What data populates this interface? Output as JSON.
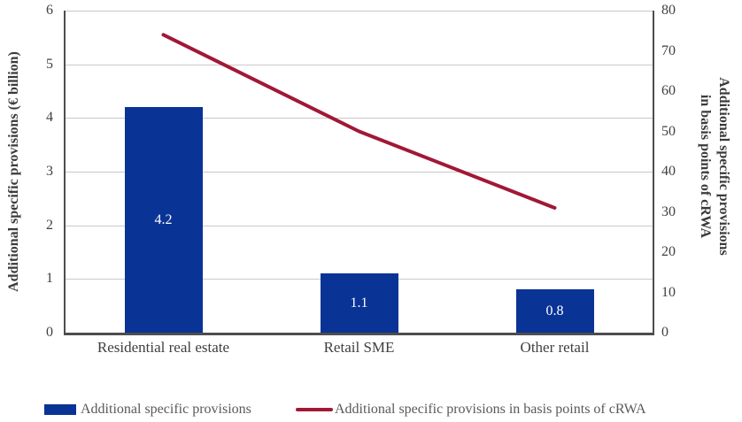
{
  "chart_data": {
    "type": "bar+line dual-axis",
    "categories": [
      "Residential real estate",
      "Retail SME",
      "Other retail"
    ],
    "series": [
      {
        "name": "Additional specific provisions",
        "type": "bar",
        "axis": "left",
        "values": [
          4.2,
          1.1,
          0.8
        ],
        "value_labels": [
          "4.2",
          "1.1",
          "0.8"
        ],
        "color": "#0a3396"
      },
      {
        "name": "Additional specific provisions in basis points of cRWA",
        "type": "line",
        "axis": "right",
        "values": [
          74,
          50,
          31
        ],
        "color": "#a11836"
      }
    ],
    "left_axis": {
      "title": "Additional specific provisions (€ billion)",
      "min": 0,
      "max": 6,
      "ticks": [
        0,
        1,
        2,
        3,
        4,
        5,
        6
      ]
    },
    "right_axis": {
      "title_line1": "Additional specific provisions",
      "title_line2": "in basis points of cRWA",
      "min": 0,
      "max": 80,
      "ticks": [
        0,
        10,
        20,
        30,
        40,
        50,
        60,
        70,
        80
      ]
    },
    "grid": "horizontal only",
    "legend_position": "bottom"
  },
  "colors": {
    "bar": "#0a3396",
    "line": "#a11836",
    "axis": "#4d4d4d",
    "gridline": "#c9c9c9",
    "tick_text": "#404040",
    "legend_text": "#595959",
    "bar_value_text": "#ffffff"
  }
}
